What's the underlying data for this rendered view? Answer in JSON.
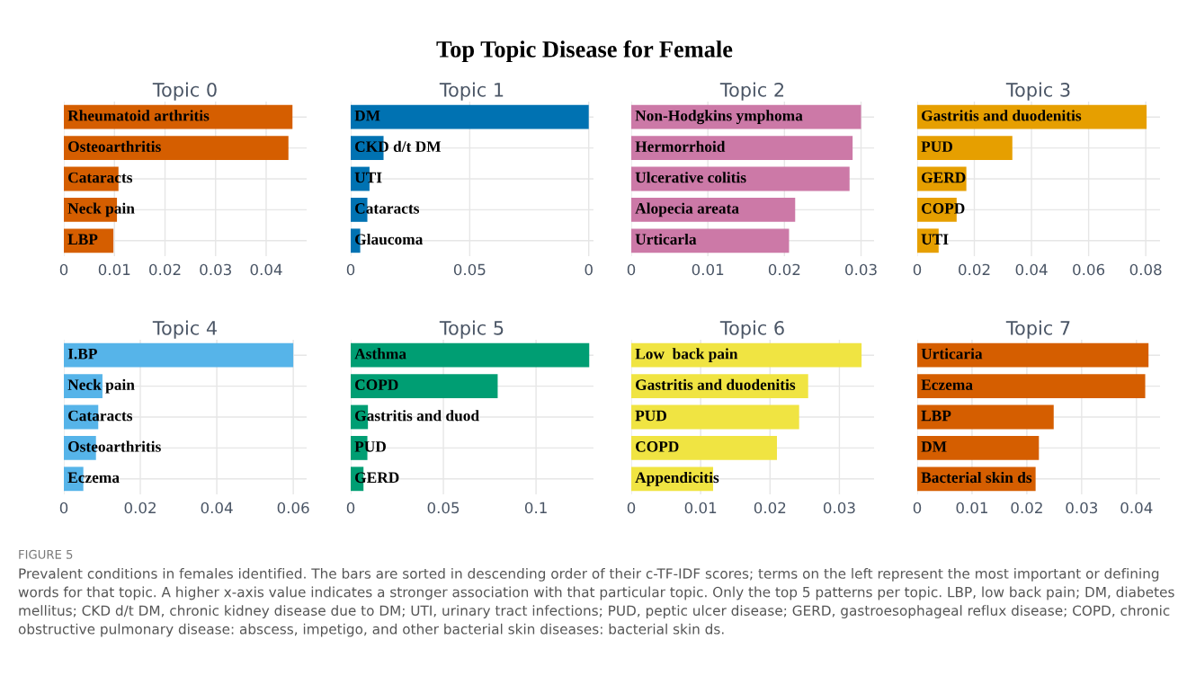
{
  "chart_data": [
    {
      "type": "other",
      "title": "Top Topic Disease for Female",
      "annotations": [
        "FIGURE 5",
        "Prevalent conditions in females identified. The bars are sorted in descending order of their c-TF-IDF scores; terms on the left represent the most important or defining words for that topic. A higher x-axis value indicates a stronger association with that particular topic. Only the top 5 patterns per topic. LBP, low back pain; DM, diabetes mellitus; CKD d/t DM, chronic kidney disease due to DM; UTI, urinary tract infections; PUD, peptic ulcer disease; GERD, gastroesophageal reflux disease; COPD, chronic obstructive pulmonary disease: abscess, impetigo, and other bacterial skin diseases: bacterial skin ds."
      ]
    },
    {
      "type": "bar",
      "orientation": "horizontal",
      "title": "Topic 0",
      "categories": [
        "Rheumatoid arthritis",
        "Osteoarthritis",
        "Cataracts",
        "Neck pain",
        "LBP"
      ],
      "values": [
        0.0452,
        0.0444,
        0.0108,
        0.0105,
        0.0098
      ],
      "color": "#d55e00",
      "xlim": [
        0,
        0.048
      ],
      "xticks": [
        0,
        0.01,
        0.02,
        0.03,
        0.04
      ],
      "grid": true
    },
    {
      "type": "bar",
      "orientation": "horizontal",
      "title": "Topic 1",
      "categories": [
        "DM",
        "CKD d/t DM",
        "UTI",
        "Cataracts",
        "Glaucoma"
      ],
      "values": [
        0.1,
        0.0138,
        0.0079,
        0.007,
        0.004
      ],
      "color": "#0072b2",
      "xlim": [
        0,
        0.102
      ],
      "xticks": [
        0,
        0.05,
        {
          "value": 0.1,
          "label": "0"
        }
      ],
      "grid": true
    },
    {
      "type": "bar",
      "orientation": "horizontal",
      "title": "Topic 2",
      "categories": [
        "Non-Hodgkins ymphoma",
        "Hermorrhoid",
        "Ulcerative colitis",
        "Alopecia areata",
        "Urticarla"
      ],
      "values": [
        0.03,
        0.0289,
        0.0285,
        0.0214,
        0.0206
      ],
      "color": "#cc79a7",
      "xlim": [
        0,
        0.0317
      ],
      "xticks": [
        0,
        0.01,
        0.02,
        0.03
      ],
      "grid": true
    },
    {
      "type": "bar",
      "orientation": "horizontal",
      "title": "Topic 3",
      "categories": [
        "Gastritis and duodenitis",
        "PUD",
        "GERD",
        "COPD",
        "UTI"
      ],
      "values": [
        0.0803,
        0.0333,
        0.0172,
        0.0138,
        0.0075
      ],
      "color": "#e69f00",
      "xlim": [
        0,
        0.085
      ],
      "xticks": [
        0,
        0.02,
        0.04,
        0.06,
        0.08
      ],
      "grid": true
    },
    {
      "type": "bar",
      "orientation": "horizontal",
      "title": "Topic 4",
      "categories": [
        "I.BP",
        "Neck pain",
        "Cataracts",
        "Osteoarthritis",
        "Eczema"
      ],
      "values": [
        0.06,
        0.0101,
        0.009,
        0.0084,
        0.0051
      ],
      "color": "#56b4e9",
      "xlim": [
        0,
        0.0635
      ],
      "xticks": [
        0,
        0.02,
        0.04,
        0.06
      ],
      "grid": true
    },
    {
      "type": "bar",
      "orientation": "horizontal",
      "title": "Topic 5",
      "categories": [
        "Asthma",
        "COPD",
        "Gastritis and duod",
        "PUD",
        "GERD"
      ],
      "values": [
        0.1287,
        0.0793,
        0.0093,
        0.009,
        0.0069
      ],
      "color": "#009e73",
      "xlim": [
        0,
        0.131
      ],
      "xticks": [
        0,
        0.05,
        0.1
      ],
      "grid": true
    },
    {
      "type": "bar",
      "orientation": "horizontal",
      "title": "Topic 6",
      "categories": [
        "Low  back pain",
        "Gastritis and duodenitis",
        "PUD",
        "COPD",
        "Appendicitis"
      ],
      "values": [
        0.0332,
        0.0255,
        0.0242,
        0.021,
        0.0118
      ],
      "color": "#f0e442",
      "xlim": [
        0,
        0.035
      ],
      "xticks": [
        0,
        0.01,
        0.02,
        0.03
      ],
      "grid": true
    },
    {
      "type": "bar",
      "orientation": "horizontal",
      "title": "Topic 7",
      "categories": [
        "Urticaria",
        "Eczema",
        "LBP",
        "DM",
        "Bacterial skin ds"
      ],
      "values": [
        0.0422,
        0.0416,
        0.0249,
        0.0222,
        0.0216
      ],
      "color": "#d55e00",
      "xlim": [
        0,
        0.0443
      ],
      "xticks": [
        0,
        0.01,
        0.02,
        0.03,
        0.04
      ],
      "grid": true
    }
  ]
}
